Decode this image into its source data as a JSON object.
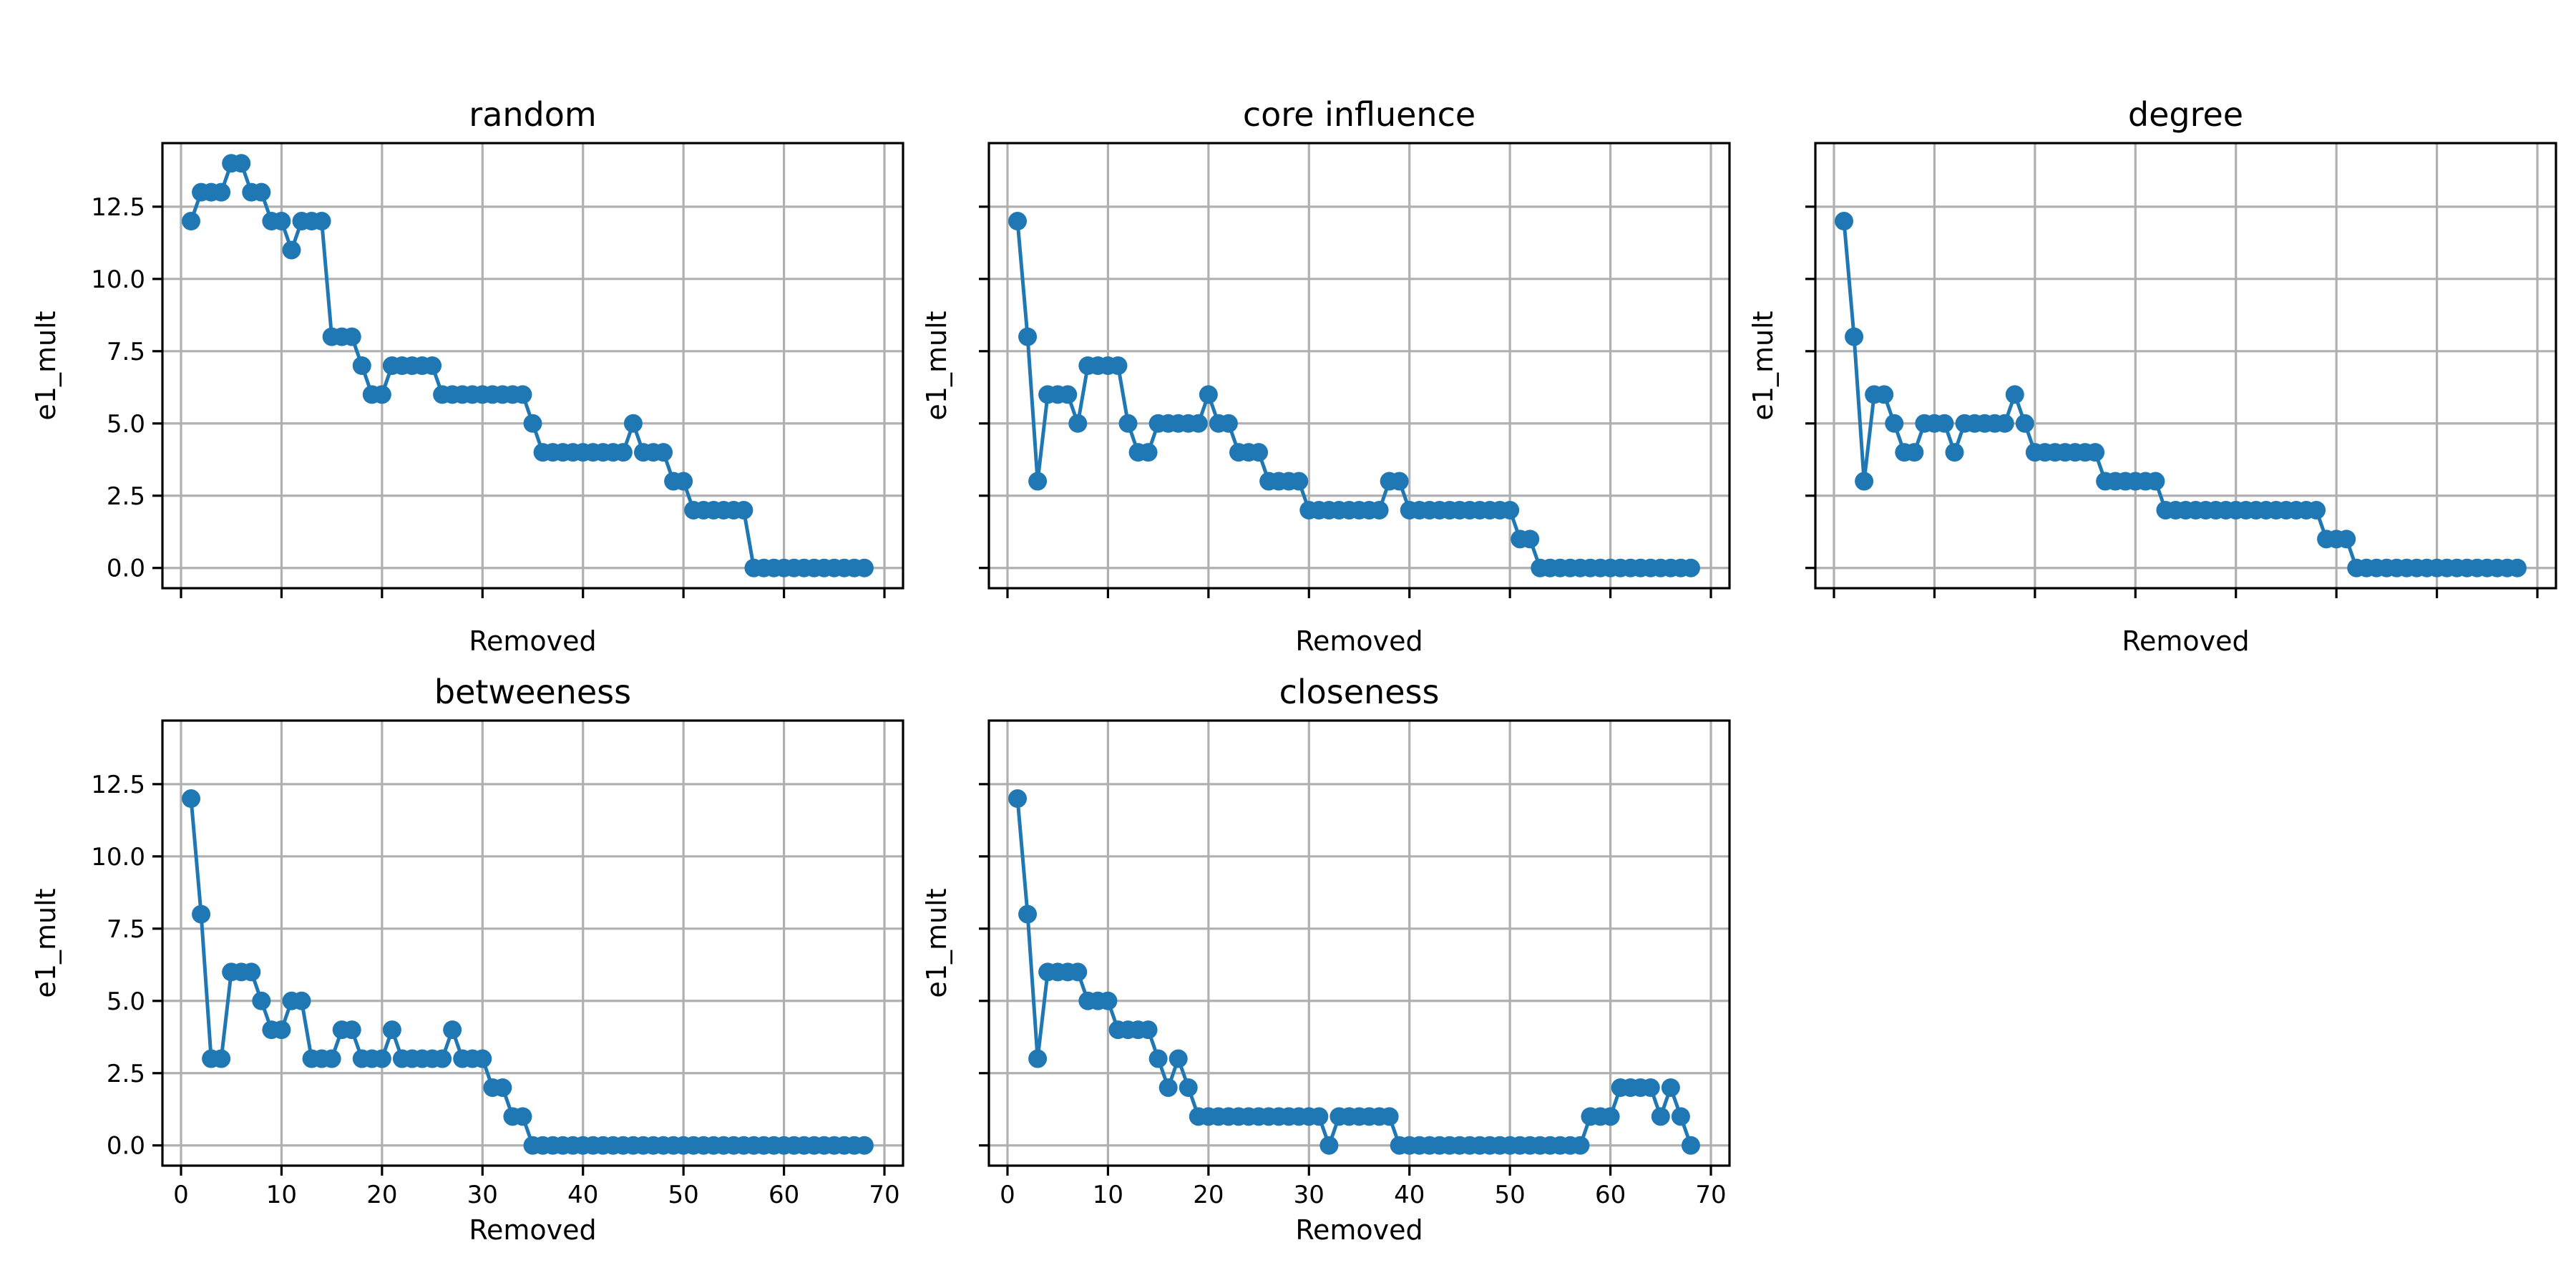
{
  "chart_data": [
    {
      "type": "line",
      "title": "random",
      "xlabel": "Removed",
      "ylabel": "e1_mult",
      "show_xtick_labels": false,
      "show_ytick_labels": true,
      "xlim": [
        -1.85,
        71.85
      ],
      "ylim": [
        -0.7,
        14.7
      ],
      "xticks": [
        0,
        10,
        20,
        30,
        40,
        50,
        60,
        70
      ],
      "yticks": [
        0.0,
        2.5,
        5.0,
        7.5,
        10.0,
        12.5
      ],
      "ytick_labels": [
        "0.0",
        "2.5",
        "5.0",
        "7.5",
        "10.0",
        "12.5"
      ],
      "xtick_labels": [
        "0",
        "10",
        "20",
        "30",
        "40",
        "50",
        "60",
        "70"
      ],
      "grid": true,
      "color": "#1f77b4",
      "x": [
        1,
        2,
        3,
        4,
        5,
        6,
        7,
        8,
        9,
        10,
        11,
        12,
        13,
        14,
        15,
        16,
        17,
        18,
        19,
        20,
        21,
        22,
        23,
        24,
        25,
        26,
        27,
        28,
        29,
        30,
        31,
        32,
        33,
        34,
        35,
        36,
        37,
        38,
        39,
        40,
        41,
        42,
        43,
        44,
        45,
        46,
        47,
        48,
        49,
        50,
        51,
        52,
        53,
        54,
        55,
        56,
        57,
        58,
        59,
        60,
        61,
        62,
        63,
        64,
        65,
        66,
        67,
        68
      ],
      "y": [
        12,
        13,
        13,
        13,
        14,
        14,
        13,
        13,
        12,
        12,
        11,
        12,
        12,
        12,
        8,
        8,
        8,
        7,
        6,
        6,
        7,
        7,
        7,
        7,
        7,
        6,
        6,
        6,
        6,
        6,
        6,
        6,
        6,
        6,
        5,
        4,
        4,
        4,
        4,
        4,
        4,
        4,
        4,
        4,
        5,
        4,
        4,
        4,
        3,
        3,
        2,
        2,
        2,
        2,
        2,
        2,
        0,
        0,
        0,
        0,
        0,
        0,
        0,
        0,
        0,
        0,
        0,
        0
      ]
    },
    {
      "type": "line",
      "title": "core influence",
      "xlabel": "Removed",
      "ylabel": "e1_mult",
      "show_xtick_labels": false,
      "show_ytick_labels": false,
      "xlim": [
        -1.85,
        71.85
      ],
      "ylim": [
        -0.7,
        14.7
      ],
      "xticks": [
        0,
        10,
        20,
        30,
        40,
        50,
        60,
        70
      ],
      "yticks": [
        0.0,
        2.5,
        5.0,
        7.5,
        10.0,
        12.5
      ],
      "ytick_labels": [
        "0.0",
        "2.5",
        "5.0",
        "7.5",
        "10.0",
        "12.5"
      ],
      "xtick_labels": [
        "0",
        "10",
        "20",
        "30",
        "40",
        "50",
        "60",
        "70"
      ],
      "grid": true,
      "color": "#1f77b4",
      "x": [
        1,
        2,
        3,
        4,
        5,
        6,
        7,
        8,
        9,
        10,
        11,
        12,
        13,
        14,
        15,
        16,
        17,
        18,
        19,
        20,
        21,
        22,
        23,
        24,
        25,
        26,
        27,
        28,
        29,
        30,
        31,
        32,
        33,
        34,
        35,
        36,
        37,
        38,
        39,
        40,
        41,
        42,
        43,
        44,
        45,
        46,
        47,
        48,
        49,
        50,
        51,
        52,
        53,
        54,
        55,
        56,
        57,
        58,
        59,
        60,
        61,
        62,
        63,
        64,
        65,
        66,
        67,
        68
      ],
      "y": [
        12,
        8,
        3,
        6,
        6,
        6,
        5,
        7,
        7,
        7,
        7,
        5,
        4,
        4,
        5,
        5,
        5,
        5,
        5,
        6,
        5,
        5,
        4,
        4,
        4,
        3,
        3,
        3,
        3,
        2,
        2,
        2,
        2,
        2,
        2,
        2,
        2,
        3,
        3,
        2,
        2,
        2,
        2,
        2,
        2,
        2,
        2,
        2,
        2,
        2,
        1,
        1,
        0,
        0,
        0,
        0,
        0,
        0,
        0,
        0,
        0,
        0,
        0,
        0,
        0,
        0,
        0,
        0
      ]
    },
    {
      "type": "line",
      "title": "degree",
      "xlabel": "Removed",
      "ylabel": "e1_mult",
      "show_xtick_labels": false,
      "show_ytick_labels": false,
      "xlim": [
        -1.85,
        71.85
      ],
      "ylim": [
        -0.7,
        14.7
      ],
      "xticks": [
        0,
        10,
        20,
        30,
        40,
        50,
        60,
        70
      ],
      "yticks": [
        0.0,
        2.5,
        5.0,
        7.5,
        10.0,
        12.5
      ],
      "ytick_labels": [
        "0.0",
        "2.5",
        "5.0",
        "7.5",
        "10.0",
        "12.5"
      ],
      "xtick_labels": [
        "0",
        "10",
        "20",
        "30",
        "40",
        "50",
        "60",
        "70"
      ],
      "grid": true,
      "color": "#1f77b4",
      "x": [
        1,
        2,
        3,
        4,
        5,
        6,
        7,
        8,
        9,
        10,
        11,
        12,
        13,
        14,
        15,
        16,
        17,
        18,
        19,
        20,
        21,
        22,
        23,
        24,
        25,
        26,
        27,
        28,
        29,
        30,
        31,
        32,
        33,
        34,
        35,
        36,
        37,
        38,
        39,
        40,
        41,
        42,
        43,
        44,
        45,
        46,
        47,
        48,
        49,
        50,
        51,
        52,
        53,
        54,
        55,
        56,
        57,
        58,
        59,
        60,
        61,
        62,
        63,
        64,
        65,
        66,
        67,
        68
      ],
      "y": [
        12,
        8,
        3,
        6,
        6,
        5,
        4,
        4,
        5,
        5,
        5,
        4,
        5,
        5,
        5,
        5,
        5,
        6,
        5,
        4,
        4,
        4,
        4,
        4,
        4,
        4,
        3,
        3,
        3,
        3,
        3,
        3,
        2,
        2,
        2,
        2,
        2,
        2,
        2,
        2,
        2,
        2,
        2,
        2,
        2,
        2,
        2,
        2,
        1,
        1,
        1,
        0,
        0,
        0,
        0,
        0,
        0,
        0,
        0,
        0,
        0,
        0,
        0,
        0,
        0,
        0,
        0,
        0
      ]
    },
    {
      "type": "line",
      "title": "betweeness",
      "xlabel": "Removed",
      "ylabel": "e1_mult",
      "show_xtick_labels": true,
      "show_ytick_labels": true,
      "xlim": [
        -1.85,
        71.85
      ],
      "ylim": [
        -0.7,
        14.7
      ],
      "xticks": [
        0,
        10,
        20,
        30,
        40,
        50,
        60,
        70
      ],
      "yticks": [
        0.0,
        2.5,
        5.0,
        7.5,
        10.0,
        12.5
      ],
      "ytick_labels": [
        "0.0",
        "2.5",
        "5.0",
        "7.5",
        "10.0",
        "12.5"
      ],
      "xtick_labels": [
        "0",
        "10",
        "20",
        "30",
        "40",
        "50",
        "60",
        "70"
      ],
      "grid": true,
      "color": "#1f77b4",
      "x": [
        1,
        2,
        3,
        4,
        5,
        6,
        7,
        8,
        9,
        10,
        11,
        12,
        13,
        14,
        15,
        16,
        17,
        18,
        19,
        20,
        21,
        22,
        23,
        24,
        25,
        26,
        27,
        28,
        29,
        30,
        31,
        32,
        33,
        34,
        35,
        36,
        37,
        38,
        39,
        40,
        41,
        42,
        43,
        44,
        45,
        46,
        47,
        48,
        49,
        50,
        51,
        52,
        53,
        54,
        55,
        56,
        57,
        58,
        59,
        60,
        61,
        62,
        63,
        64,
        65,
        66,
        67,
        68
      ],
      "y": [
        12,
        8,
        3,
        3,
        6,
        6,
        6,
        5,
        4,
        4,
        5,
        5,
        3,
        3,
        3,
        4,
        4,
        3,
        3,
        3,
        4,
        3,
        3,
        3,
        3,
        3,
        4,
        3,
        3,
        3,
        2,
        2,
        1,
        1,
        0,
        0,
        0,
        0,
        0,
        0,
        0,
        0,
        0,
        0,
        0,
        0,
        0,
        0,
        0,
        0,
        0,
        0,
        0,
        0,
        0,
        0,
        0,
        0,
        0,
        0,
        0,
        0,
        0,
        0,
        0,
        0,
        0,
        0
      ]
    },
    {
      "type": "line",
      "title": "closeness",
      "xlabel": "Removed",
      "ylabel": "e1_mult",
      "show_xtick_labels": true,
      "show_ytick_labels": false,
      "xlim": [
        -1.85,
        71.85
      ],
      "ylim": [
        -0.7,
        14.7
      ],
      "xticks": [
        0,
        10,
        20,
        30,
        40,
        50,
        60,
        70
      ],
      "yticks": [
        0.0,
        2.5,
        5.0,
        7.5,
        10.0,
        12.5
      ],
      "ytick_labels": [
        "0.0",
        "2.5",
        "5.0",
        "7.5",
        "10.0",
        "12.5"
      ],
      "xtick_labels": [
        "0",
        "10",
        "20",
        "30",
        "40",
        "50",
        "60",
        "70"
      ],
      "grid": true,
      "color": "#1f77b4",
      "x": [
        1,
        2,
        3,
        4,
        5,
        6,
        7,
        8,
        9,
        10,
        11,
        12,
        13,
        14,
        15,
        16,
        17,
        18,
        19,
        20,
        21,
        22,
        23,
        24,
        25,
        26,
        27,
        28,
        29,
        30,
        31,
        32,
        33,
        34,
        35,
        36,
        37,
        38,
        39,
        40,
        41,
        42,
        43,
        44,
        45,
        46,
        47,
        48,
        49,
        50,
        51,
        52,
        53,
        54,
        55,
        56,
        57,
        58,
        59,
        60,
        61,
        62,
        63,
        64,
        65,
        66,
        67,
        68
      ],
      "y": [
        12,
        8,
        3,
        6,
        6,
        6,
        6,
        5,
        5,
        5,
        4,
        4,
        4,
        4,
        3,
        2,
        3,
        2,
        1,
        1,
        1,
        1,
        1,
        1,
        1,
        1,
        1,
        1,
        1,
        1,
        1,
        0,
        1,
        1,
        1,
        1,
        1,
        1,
        0,
        0,
        0,
        0,
        0,
        0,
        0,
        0,
        0,
        0,
        0,
        0,
        0,
        0,
        0,
        0,
        0,
        0,
        0,
        1,
        1,
        1,
        2,
        2,
        2,
        2,
        1,
        2,
        1,
        0
      ]
    }
  ]
}
